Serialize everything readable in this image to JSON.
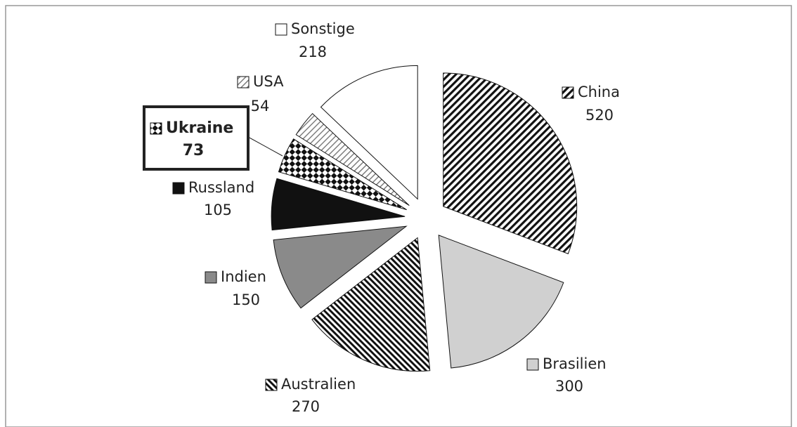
{
  "chart_data": {
    "type": "pie",
    "categories": [
      "China",
      "Brasilien",
      "Australien",
      "Indien",
      "Russland",
      "Ukraine",
      "USA",
      "Sonstige"
    ],
    "values": [
      520,
      300,
      270,
      150,
      105,
      73,
      54,
      218
    ],
    "highlight": "Ukraine"
  }
}
